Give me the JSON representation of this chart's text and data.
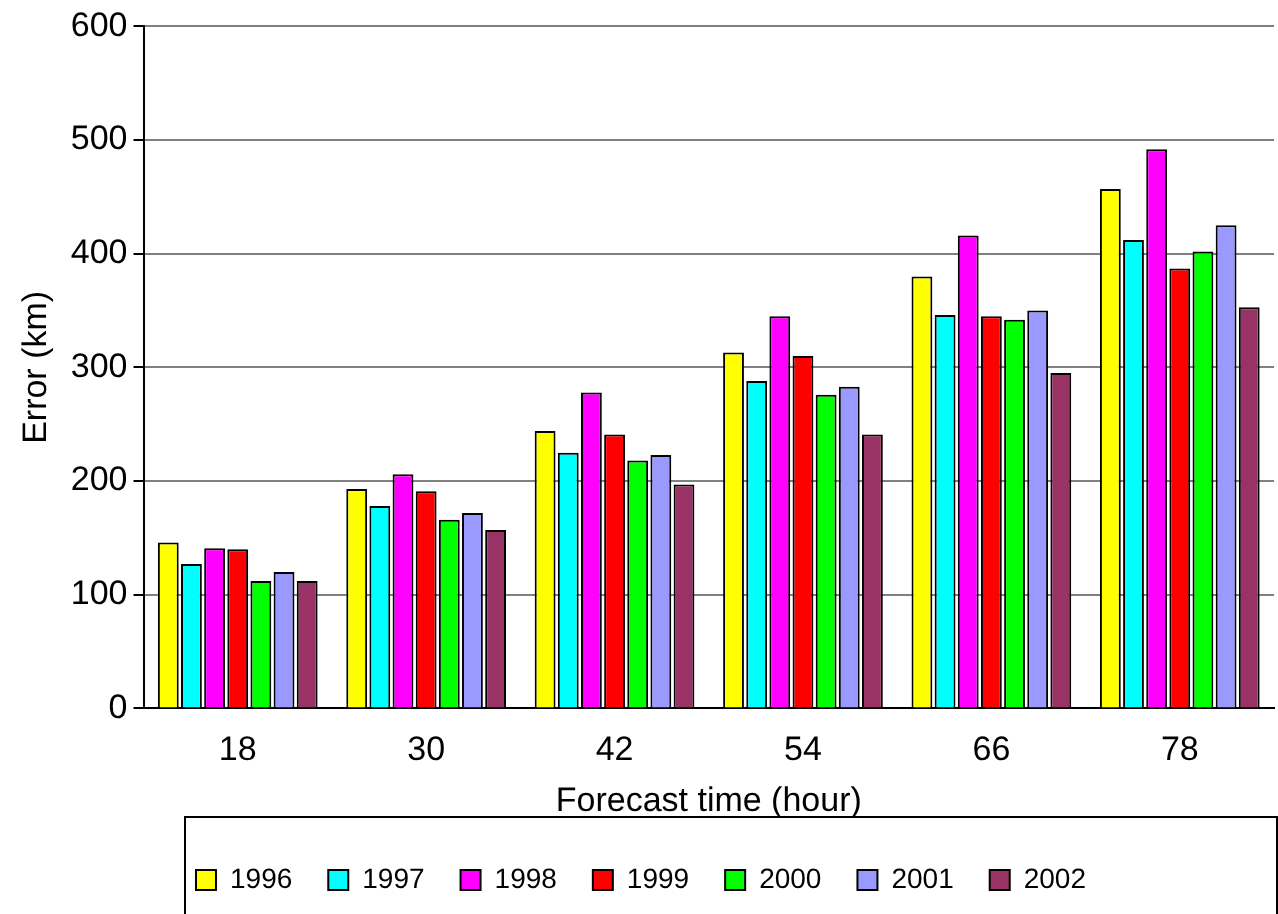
{
  "chart_data": {
    "type": "bar",
    "xlabel": "Forecast time (hour)",
    "ylabel": "Error (km)",
    "categories": [
      "18",
      "30",
      "42",
      "54",
      "66",
      "78"
    ],
    "series": [
      {
        "name": "1996",
        "color": "#ffff00",
        "values": [
          146,
          193,
          244,
          313,
          380,
          457
        ]
      },
      {
        "name": "1997",
        "color": "#00ffff",
        "values": [
          127,
          178,
          225,
          288,
          346,
          412
        ]
      },
      {
        "name": "1998",
        "color": "#ff00ff",
        "values": [
          141,
          206,
          278,
          345,
          416,
          492
        ]
      },
      {
        "name": "1999",
        "color": "#ff0000",
        "values": [
          140,
          191,
          241,
          310,
          345,
          387
        ]
      },
      {
        "name": "2000",
        "color": "#00ff00",
        "values": [
          112,
          166,
          218,
          276,
          342,
          402
        ]
      },
      {
        "name": "2001",
        "color": "#9999ff",
        "values": [
          120,
          172,
          223,
          283,
          350,
          425
        ]
      },
      {
        "name": "2002",
        "color": "#993366",
        "values": [
          112,
          157,
          197,
          241,
          295,
          353
        ]
      }
    ],
    "ylim": [
      0,
      600
    ],
    "yticks": [
      0,
      100,
      200,
      300,
      400,
      500,
      600
    ],
    "grid": "y",
    "legend": "bottom"
  }
}
